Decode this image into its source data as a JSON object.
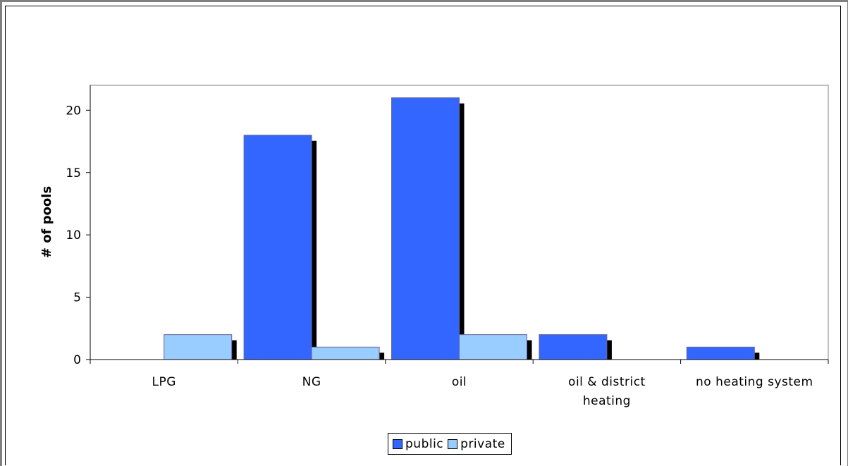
{
  "chart_data": {
    "type": "bar",
    "title": "",
    "xlabel": "",
    "ylabel": "# of pools",
    "categories": [
      "LPG",
      "NG",
      "oil",
      "oil & district heating",
      "no heating system"
    ],
    "category_lines": [
      [
        "LPG"
      ],
      [
        "NG"
      ],
      [
        "oil"
      ],
      [
        "oil & district",
        "heating"
      ],
      [
        "no heating system"
      ]
    ],
    "series": [
      {
        "name": "public",
        "values": [
          0,
          18,
          21,
          2,
          1
        ],
        "color": "#3366FF"
      },
      {
        "name": "private",
        "values": [
          2,
          1,
          2,
          0,
          0
        ],
        "color": "#99CCFF"
      }
    ],
    "ylim": [
      0,
      22
    ],
    "yticks": [
      0,
      5,
      10,
      15,
      20
    ],
    "grid": false,
    "legend_position": "bottom-center",
    "shadow_color": "#000000"
  }
}
